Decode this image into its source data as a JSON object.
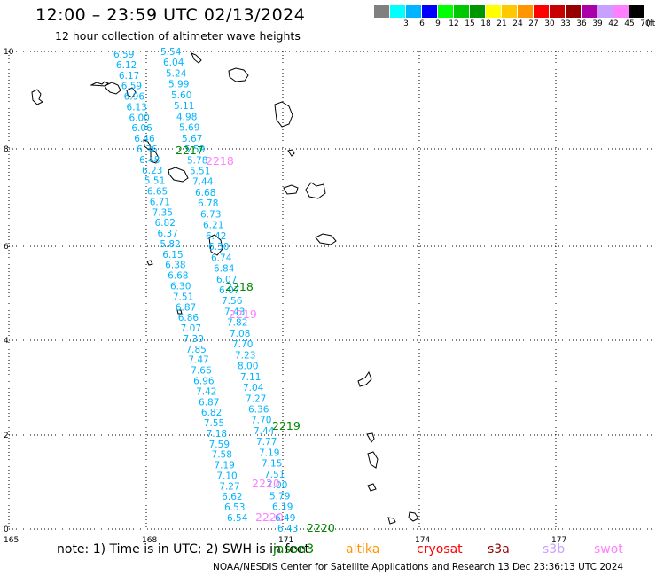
{
  "title": "12:00 – 23:59 UTC 02/13/2024",
  "subtitle": "12 hour collection of altimeter wave heights",
  "colorbar": {
    "unit": "(ft)",
    "swatches": [
      {
        "label": "",
        "color": "#808080"
      },
      {
        "label": "3",
        "color": "#00ffff"
      },
      {
        "label": "6",
        "color": "#00b4ff"
      },
      {
        "label": "9",
        "color": "#0000ff"
      },
      {
        "label": "12",
        "color": "#00ff00"
      },
      {
        "label": "15",
        "color": "#00c800"
      },
      {
        "label": "18",
        "color": "#009600"
      },
      {
        "label": "21",
        "color": "#ffff00"
      },
      {
        "label": "24",
        "color": "#ffc800"
      },
      {
        "label": "27",
        "color": "#ff9600"
      },
      {
        "label": "30",
        "color": "#ff0000"
      },
      {
        "label": "33",
        "color": "#c80000"
      },
      {
        "label": "36",
        "color": "#960000"
      },
      {
        "label": "39",
        "color": "#aa00aa"
      },
      {
        "label": "42",
        "color": "#c8a0ff"
      },
      {
        "label": "45",
        "color": "#ff80ff"
      },
      {
        "label": "70",
        "color": "#000000"
      }
    ]
  },
  "axes": {
    "x_ticks": [
      "165",
      "168",
      "171",
      "174",
      "177"
    ],
    "y_ticks": [
      "0",
      "2",
      "4",
      "6",
      "8",
      "10"
    ]
  },
  "tracks": {
    "left": [
      "6.59",
      "6.12",
      "6.17",
      "6.59",
      "6.96",
      "6.13",
      "6.00",
      "6.06",
      "6.46",
      "6.36",
      "6.48",
      "6.23",
      "5.51",
      "6.65",
      "6.71",
      "7.35",
      "6.82",
      "6.37",
      "5.82",
      "6.15",
      "6.38",
      "6.68",
      "6.30",
      "7.51",
      "6.87",
      "6.86",
      "7.07",
      "7.39",
      "7.85",
      "7.47",
      "7.66",
      "6.96",
      "7.42",
      "6.87",
      "6.82",
      "7.55",
      "7.18",
      "7.59",
      "7.58",
      "7.19",
      "7.10",
      "7.27",
      "6.62",
      "6.53",
      "6.54"
    ],
    "right": [
      "5.54",
      "6.04",
      "5.24",
      "5.99",
      "5.60",
      "5.11",
      "4.98",
      "5.69",
      "5.67",
      "5.59",
      "5.78",
      "5.51",
      "7.44",
      "6.68",
      "6.78",
      "6.73",
      "6.21",
      "6.42",
      "6.30",
      "6.74",
      "6.84",
      "6.07",
      "6.07",
      "7.56",
      "7.43",
      "7.82",
      "7.08",
      "7.70",
      "7.23",
      "8.00",
      "7.11",
      "7.04",
      "7.27",
      "6.36",
      "7.70",
      "7.44",
      "7.77",
      "7.19",
      "7.15",
      "7.51",
      "7.00",
      "5.79",
      "6.19",
      "6.49",
      "6.43"
    ]
  },
  "pass_labels": [
    {
      "text": "2217",
      "color": "#008800"
    },
    {
      "text": "2218",
      "color": "#ff80ff"
    },
    {
      "text": "2218",
      "color": "#008800"
    },
    {
      "text": "2219",
      "color": "#ff80ff"
    },
    {
      "text": "2219",
      "color": "#008800"
    },
    {
      "text": "2220",
      "color": "#ff80ff"
    },
    {
      "text": "2220",
      "color": "#ff80ff"
    },
    {
      "text": "2220",
      "color": "#008800"
    }
  ],
  "notes": {
    "note": "note: 1) Time is in UTC; 2) SWH is in feet",
    "satellites": [
      {
        "name": "jason3",
        "color": "#008800"
      },
      {
        "name": "altika",
        "color": "#ff9600"
      },
      {
        "name": "cryosat",
        "color": "#ff0000"
      },
      {
        "name": "s3a",
        "color": "#960000"
      },
      {
        "name": "s3b",
        "color": "#c8a0ff"
      },
      {
        "name": "swot",
        "color": "#ff80ff"
      }
    ]
  },
  "credit": "NOAA/NESDIS Center for Satellite Applications and Research    13 Dec 23:36:13 UTC 2024"
}
